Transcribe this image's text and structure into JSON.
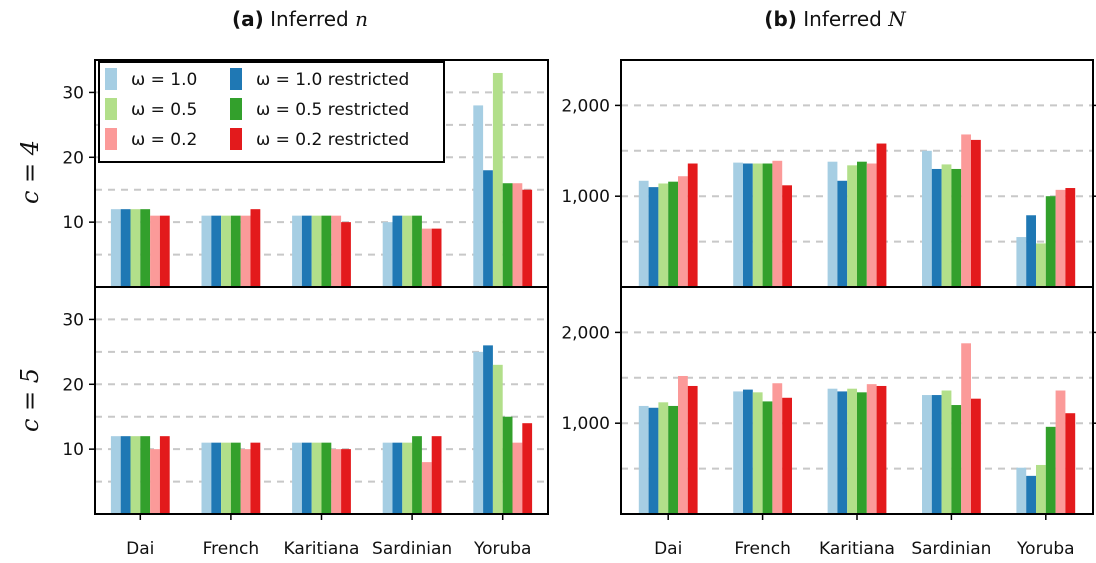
{
  "figure": {
    "panel_a_label": "(a)",
    "panel_a_title": "Inferred",
    "panel_a_var": "n",
    "panel_b_label": "(b)",
    "panel_b_title": "Inferred",
    "panel_b_var": "N",
    "row_labels": [
      "c = 4",
      "c = 5"
    ]
  },
  "legend": [
    {
      "label": "ω = 1.0",
      "color": "#a6cee3"
    },
    {
      "label": "ω = 1.0 restricted",
      "color": "#1f78b4"
    },
    {
      "label": "ω = 0.5",
      "color": "#b2df8a"
    },
    {
      "label": "ω = 0.5 restricted",
      "color": "#33a02c"
    },
    {
      "label": "ω = 0.2",
      "color": "#fb9a99"
    },
    {
      "label": "ω = 0.2 restricted",
      "color": "#e31a1c"
    }
  ],
  "chart_data": [
    {
      "type": "bar",
      "panel": "(a) Inferred n",
      "row": "c = 4",
      "categories": [
        "Dai",
        "French",
        "Karitiana",
        "Sardinian",
        "Yoruba"
      ],
      "ylim": [
        0,
        35
      ],
      "yticks": [
        10,
        20,
        30
      ],
      "grid": true,
      "legend_placement": "top-left",
      "series": [
        {
          "name": "ω = 1.0",
          "values": [
            12,
            11,
            11,
            10,
            28
          ]
        },
        {
          "name": "ω = 1.0 restricted",
          "values": [
            12,
            11,
            11,
            11,
            18
          ]
        },
        {
          "name": "ω = 0.5",
          "values": [
            12,
            11,
            11,
            11,
            33
          ]
        },
        {
          "name": "ω = 0.5 restricted",
          "values": [
            12,
            11,
            11,
            11,
            16
          ]
        },
        {
          "name": "ω = 0.2",
          "values": [
            11,
            11,
            11,
            9,
            16
          ]
        },
        {
          "name": "ω = 0.2 restricted",
          "values": [
            11,
            12,
            10,
            9,
            15
          ]
        }
      ]
    },
    {
      "type": "bar",
      "panel": "(b) Inferred N",
      "row": "c = 4",
      "categories": [
        "Dai",
        "French",
        "Karitiana",
        "Sardinian",
        "Yoruba"
      ],
      "ylim": [
        0,
        2500
      ],
      "yticks": [
        1000,
        2000
      ],
      "ytick_labels": [
        "1,000",
        "2,000"
      ],
      "grid": true,
      "series": [
        {
          "name": "ω = 1.0",
          "values": [
            1170,
            1370,
            1380,
            1500,
            550
          ]
        },
        {
          "name": "ω = 1.0 restricted",
          "values": [
            1100,
            1360,
            1170,
            1300,
            790
          ]
        },
        {
          "name": "ω = 0.5",
          "values": [
            1140,
            1360,
            1340,
            1350,
            480
          ]
        },
        {
          "name": "ω = 0.5 restricted",
          "values": [
            1160,
            1360,
            1380,
            1300,
            1000
          ]
        },
        {
          "name": "ω = 0.2",
          "values": [
            1220,
            1390,
            1360,
            1680,
            1070
          ]
        },
        {
          "name": "ω = 0.2 restricted",
          "values": [
            1360,
            1120,
            1580,
            1620,
            1090
          ]
        }
      ]
    },
    {
      "type": "bar",
      "panel": "(a) Inferred n",
      "row": "c = 5",
      "categories": [
        "Dai",
        "French",
        "Karitiana",
        "Sardinian",
        "Yoruba"
      ],
      "ylim": [
        0,
        35
      ],
      "yticks": [
        10,
        20,
        30
      ],
      "grid": true,
      "series": [
        {
          "name": "ω = 1.0",
          "values": [
            12,
            11,
            11,
            11,
            25
          ]
        },
        {
          "name": "ω = 1.0 restricted",
          "values": [
            12,
            11,
            11,
            11,
            26
          ]
        },
        {
          "name": "ω = 0.5",
          "values": [
            12,
            11,
            11,
            11,
            23
          ]
        },
        {
          "name": "ω = 0.5 restricted",
          "values": [
            12,
            11,
            11,
            12,
            15
          ]
        },
        {
          "name": "ω = 0.2",
          "values": [
            10,
            10,
            10,
            8,
            11
          ]
        },
        {
          "name": "ω = 0.2 restricted",
          "values": [
            12,
            11,
            10,
            12,
            14
          ]
        }
      ]
    },
    {
      "type": "bar",
      "panel": "(b) Inferred N",
      "row": "c = 5",
      "categories": [
        "Dai",
        "French",
        "Karitiana",
        "Sardinian",
        "Yoruba"
      ],
      "ylim": [
        0,
        2500
      ],
      "yticks": [
        1000,
        2000
      ],
      "ytick_labels": [
        "1,000",
        "2,000"
      ],
      "grid": true,
      "series": [
        {
          "name": "ω = 1.0",
          "values": [
            1190,
            1350,
            1380,
            1310,
            510
          ]
        },
        {
          "name": "ω = 1.0 restricted",
          "values": [
            1170,
            1370,
            1350,
            1310,
            420
          ]
        },
        {
          "name": "ω = 0.5",
          "values": [
            1230,
            1340,
            1380,
            1360,
            540
          ]
        },
        {
          "name": "ω = 0.5 restricted",
          "values": [
            1190,
            1240,
            1340,
            1200,
            960
          ]
        },
        {
          "name": "ω = 0.2",
          "values": [
            1520,
            1440,
            1430,
            1880,
            1360
          ]
        },
        {
          "name": "ω = 0.2 restricted",
          "values": [
            1410,
            1280,
            1410,
            1270,
            1110
          ]
        }
      ]
    }
  ]
}
